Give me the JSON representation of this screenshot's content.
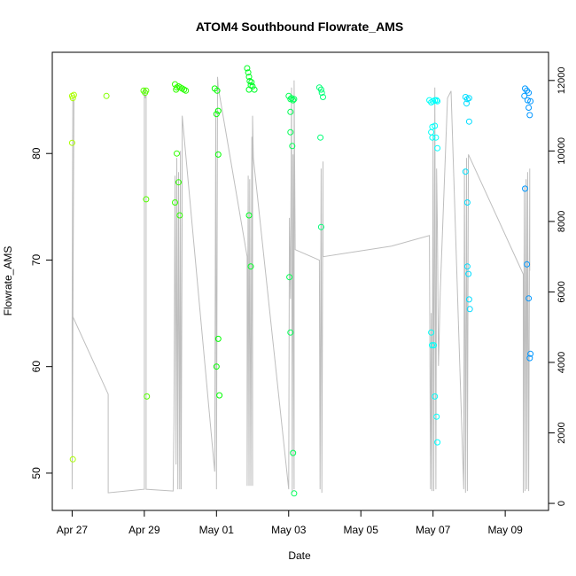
{
  "chart_data": {
    "type": "scatter",
    "title": "ATOM4 Southbound Flowrate_AMS",
    "xlabel": "Date",
    "ylabel": "Flowrate_AMS",
    "x_tick_labels": [
      "Apr 27",
      "Apr 29",
      "May 01",
      "May 03",
      "May 05",
      "May 07",
      "May 09"
    ],
    "x_tick_days": [
      0,
      2,
      4,
      6,
      8,
      10,
      12
    ],
    "xlim_days": [
      -0.55,
      13.2
    ],
    "ylim": [
      46.5,
      89.5
    ],
    "y_ticks": [
      50,
      60,
      70,
      80
    ],
    "y2lim": [
      -200,
      12800
    ],
    "y2_ticks": [
      0,
      2000,
      4000,
      6000,
      8000,
      10000,
      12000
    ],
    "points_series_name": "Flowrate_AMS",
    "points": [
      [
        0.0,
        85.4
      ],
      [
        0.02,
        85.2
      ],
      [
        0.05,
        85.5
      ],
      [
        0.0,
        81.0
      ],
      [
        0.02,
        51.3
      ],
      [
        0.95,
        85.4
      ],
      [
        1.98,
        85.9
      ],
      [
        2.02,
        85.7
      ],
      [
        2.05,
        85.9
      ],
      [
        2.05,
        75.7
      ],
      [
        2.07,
        57.2
      ],
      [
        2.85,
        86.5
      ],
      [
        2.9,
        86.2
      ],
      [
        2.95,
        86.3
      ],
      [
        3.0,
        86.2
      ],
      [
        3.05,
        86.1
      ],
      [
        3.1,
        86.0
      ],
      [
        3.15,
        85.9
      ],
      [
        2.88,
        86.0
      ],
      [
        2.85,
        75.4
      ],
      [
        2.9,
        80.0
      ],
      [
        2.95,
        77.3
      ],
      [
        2.98,
        74.2
      ],
      [
        3.95,
        86.1
      ],
      [
        4.02,
        85.9
      ],
      [
        4.0,
        83.7
      ],
      [
        4.05,
        84.0
      ],
      [
        4.05,
        79.9
      ],
      [
        4.0,
        60.0
      ],
      [
        4.05,
        62.6
      ],
      [
        4.08,
        57.3
      ],
      [
        4.85,
        88.0
      ],
      [
        4.88,
        87.6
      ],
      [
        4.9,
        87.2
      ],
      [
        4.92,
        86.8
      ],
      [
        4.95,
        86.4
      ],
      [
        4.9,
        86.0
      ],
      [
        4.97,
        86.7
      ],
      [
        5.0,
        86.3
      ],
      [
        5.05,
        86.0
      ],
      [
        4.9,
        74.2
      ],
      [
        4.95,
        69.4
      ],
      [
        6.0,
        85.4
      ],
      [
        6.05,
        85.1
      ],
      [
        6.08,
        85.2
      ],
      [
        6.12,
        85.0
      ],
      [
        6.15,
        85.1
      ],
      [
        6.05,
        83.9
      ],
      [
        6.05,
        82.0
      ],
      [
        6.1,
        80.7
      ],
      [
        6.02,
        68.4
      ],
      [
        6.05,
        63.2
      ],
      [
        6.12,
        51.9
      ],
      [
        6.15,
        48.1
      ],
      [
        6.85,
        86.2
      ],
      [
        6.9,
        86.0
      ],
      [
        6.92,
        85.7
      ],
      [
        6.95,
        85.3
      ],
      [
        6.88,
        81.5
      ],
      [
        6.9,
        73.1
      ],
      [
        9.9,
        85.0
      ],
      [
        9.95,
        84.8
      ],
      [
        10.0,
        84.9
      ],
      [
        10.05,
        85.0
      ],
      [
        10.1,
        85.0
      ],
      [
        10.12,
        84.9
      ],
      [
        9.98,
        82.5
      ],
      [
        9.95,
        82.0
      ],
      [
        10.05,
        82.6
      ],
      [
        10.08,
        81.5
      ],
      [
        9.98,
        81.5
      ],
      [
        10.12,
        80.5
      ],
      [
        9.95,
        63.2
      ],
      [
        9.97,
        62.0
      ],
      [
        10.02,
        62.0
      ],
      [
        10.05,
        57.2
      ],
      [
        10.1,
        55.3
      ],
      [
        10.12,
        52.9
      ],
      [
        10.9,
        85.3
      ],
      [
        10.95,
        85.1
      ],
      [
        11.0,
        85.2
      ],
      [
        10.93,
        84.7
      ],
      [
        11.0,
        83.0
      ],
      [
        10.9,
        78.3
      ],
      [
        10.95,
        75.4
      ],
      [
        10.95,
        69.4
      ],
      [
        10.98,
        68.7
      ],
      [
        11.0,
        66.3
      ],
      [
        11.02,
        65.4
      ],
      [
        12.55,
        86.1
      ],
      [
        12.6,
        85.9
      ],
      [
        12.65,
        85.7
      ],
      [
        12.53,
        85.4
      ],
      [
        12.62,
        85.0
      ],
      [
        12.7,
        84.9
      ],
      [
        12.65,
        84.3
      ],
      [
        12.68,
        83.6
      ],
      [
        12.55,
        76.7
      ],
      [
        12.6,
        69.6
      ],
      [
        12.65,
        66.4
      ],
      [
        12.7,
        61.2
      ],
      [
        12.68,
        60.8
      ]
    ],
    "line_series_name": "secondary (right axis)",
    "line_color": "#bebebe",
    "line": [
      [
        0.0,
        400
      ],
      [
        0.0,
        5200
      ],
      [
        0.02,
        11500
      ],
      [
        0.05,
        11400
      ],
      [
        0.0,
        400
      ],
      [
        0.02,
        5300
      ],
      [
        1.0,
        3100
      ],
      [
        1.0,
        300
      ],
      [
        2.0,
        400
      ],
      [
        2.0,
        11800
      ],
      [
        2.02,
        11500
      ],
      [
        2.05,
        11600
      ],
      [
        2.05,
        400
      ],
      [
        2.8,
        350
      ],
      [
        2.82,
        2300
      ],
      [
        2.85,
        9300
      ],
      [
        2.88,
        1100
      ],
      [
        2.9,
        9800
      ],
      [
        2.93,
        400
      ],
      [
        2.95,
        9400
      ],
      [
        2.98,
        400
      ],
      [
        3.0,
        10000
      ],
      [
        3.02,
        400
      ],
      [
        3.05,
        8500
      ],
      [
        3.05,
        11000
      ],
      [
        3.95,
        900
      ],
      [
        3.98,
        11200
      ],
      [
        4.0,
        400
      ],
      [
        4.03,
        12100
      ],
      [
        4.05,
        11800
      ],
      [
        4.85,
        7000
      ],
      [
        4.85,
        500
      ],
      [
        4.88,
        9300
      ],
      [
        4.9,
        500
      ],
      [
        4.92,
        9200
      ],
      [
        4.95,
        500
      ],
      [
        4.98,
        10400
      ],
      [
        5.0,
        500
      ],
      [
        5.0,
        11000
      ],
      [
        5.02,
        9800
      ],
      [
        6.0,
        400
      ],
      [
        6.02,
        8100
      ],
      [
        6.05,
        5800
      ],
      [
        6.08,
        11800
      ],
      [
        6.1,
        300
      ],
      [
        6.12,
        9900
      ],
      [
        6.15,
        400
      ],
      [
        6.15,
        12000
      ],
      [
        6.18,
        7200
      ],
      [
        6.85,
        6900
      ],
      [
        6.87,
        400
      ],
      [
        6.9,
        9500
      ],
      [
        6.92,
        300
      ],
      [
        6.95,
        9700
      ],
      [
        6.95,
        7000
      ],
      [
        8.85,
        7300
      ],
      [
        9.9,
        7600
      ],
      [
        9.93,
        400
      ],
      [
        9.95,
        5400
      ],
      [
        9.97,
        350
      ],
      [
        10.0,
        10500
      ],
      [
        10.02,
        350
      ],
      [
        10.05,
        11800
      ],
      [
        10.08,
        400
      ],
      [
        10.1,
        9500
      ],
      [
        10.12,
        7800
      ],
      [
        10.15,
        3900
      ],
      [
        10.2,
        6000
      ],
      [
        10.4,
        11500
      ],
      [
        10.5,
        11700
      ],
      [
        10.85,
        400
      ],
      [
        10.87,
        9500
      ],
      [
        10.9,
        300
      ],
      [
        10.93,
        9800
      ],
      [
        10.95,
        350
      ],
      [
        10.98,
        9900
      ],
      [
        12.5,
        6500
      ],
      [
        12.5,
        300
      ],
      [
        12.53,
        9000
      ],
      [
        12.55,
        350
      ],
      [
        12.58,
        9200
      ],
      [
        12.6,
        400
      ],
      [
        12.62,
        9400
      ],
      [
        12.65,
        350
      ],
      [
        12.68,
        9500
      ],
      [
        12.68,
        6600
      ]
    ],
    "legend": "none",
    "grid": false
  }
}
